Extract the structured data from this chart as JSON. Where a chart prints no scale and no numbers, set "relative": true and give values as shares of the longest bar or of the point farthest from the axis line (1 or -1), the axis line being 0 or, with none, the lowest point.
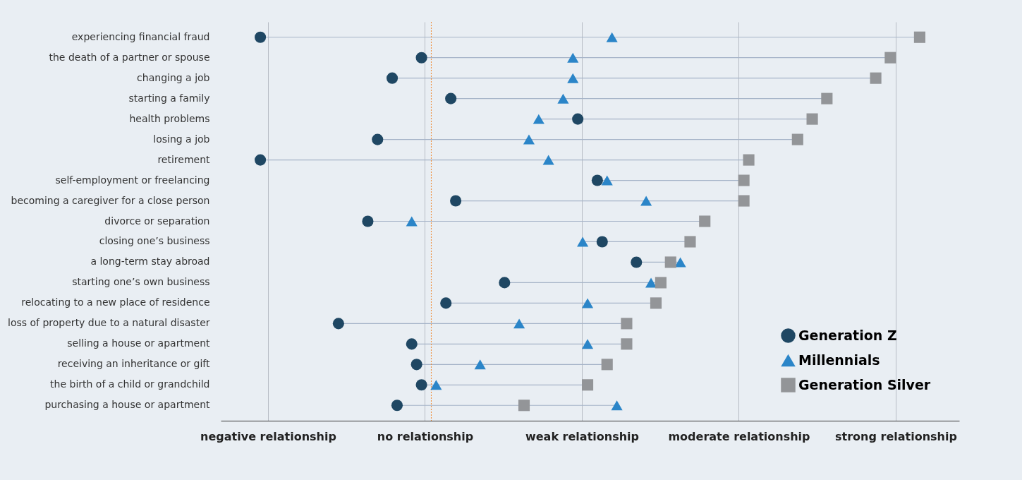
{
  "chart_data": {
    "type": "scatter",
    "orientation": "horizontal",
    "relative": true,
    "categories": [
      "experiencing financial fraud",
      "the death of a partner or spouse",
      "changing a job",
      "starting a family",
      "health problems",
      "losing a job",
      "retirement",
      "self-employment or freelancing",
      "becoming a caregiver for a close person",
      "divorce or separation",
      "closing one’s business",
      "a long-term stay abroad",
      "starting one’s own business",
      "relocating to a new place of residence",
      "loss of property due to a natural disaster",
      "selling a house or apartment",
      "receiving an inheritance or gift",
      "the birth of a child or grandchild",
      "purchasing a house or apartment"
    ],
    "series": [
      {
        "name": "Generation Z",
        "color": "#1f4763",
        "marker": "circle",
        "values": [
          -0.35,
          -0.02,
          -0.08,
          0.04,
          0.3,
          -0.11,
          -0.35,
          0.34,
          0.05,
          -0.13,
          0.35,
          0.42,
          0.15,
          0.03,
          -0.19,
          -0.04,
          -0.03,
          -0.02,
          -0.07
        ]
      },
      {
        "name": "Millennials",
        "color": "#2b85c8",
        "marker": "triangle",
        "values": [
          0.37,
          0.29,
          0.29,
          0.27,
          0.22,
          0.2,
          0.24,
          0.36,
          0.44,
          -0.04,
          0.31,
          0.51,
          0.45,
          0.32,
          0.18,
          0.32,
          0.1,
          0.01,
          0.38
        ]
      },
      {
        "name": "Generation Silver",
        "color": "#939598",
        "marker": "square",
        "values": [
          1,
          0.94,
          0.91,
          0.81,
          0.78,
          0.75,
          0.65,
          0.64,
          0.64,
          0.56,
          0.53,
          0.49,
          0.47,
          0.46,
          0.4,
          0.4,
          0.36,
          0.32,
          0.19
        ]
      }
    ],
    "annotations": [
      "negative relationship",
      "no relationship",
      "weak relationship",
      "moderate relationship",
      "strong relationship"
    ],
    "grid": "y",
    "ref_lines": [
      {
        "axis": "x",
        "value": 0,
        "label": null,
        "color": "#f08a30",
        "line_style": "dotted"
      }
    ],
    "legend": "bottom right"
  }
}
